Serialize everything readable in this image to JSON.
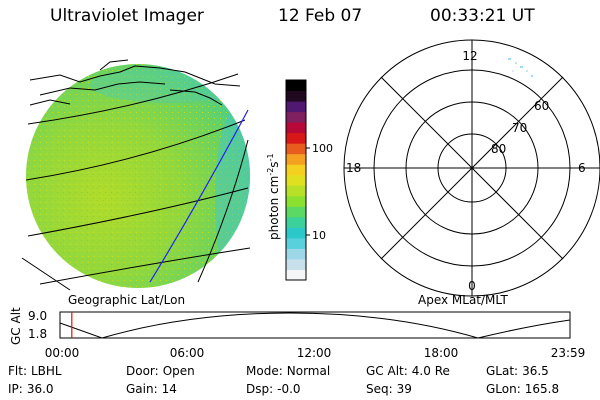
{
  "header": {
    "title": "Ultraviolet Imager",
    "date": "12 Feb 07",
    "time": "00:33:21 UT"
  },
  "colorbar": {
    "unit": "photon cm",
    "unit_exp": "-2",
    "unit_mid": "s",
    "unit_exp2": "-1",
    "tick_high": "100",
    "tick_low": "10",
    "colors": [
      "#f4f6f8",
      "#c8e0ec",
      "#9ed8e8",
      "#5ad0dc",
      "#2ac8c8",
      "#3cd09a",
      "#5cd864",
      "#8ce030",
      "#b8e028",
      "#e0e020",
      "#f4d020",
      "#f4a020",
      "#e85c20",
      "#d81818",
      "#b80838",
      "#802060",
      "#501870",
      "#200820",
      "#000000"
    ]
  },
  "panels": {
    "left_label": "Geographic Lat/Lon",
    "right_label": "Apex MLat/MLT"
  },
  "polar": {
    "mlt_top": "12",
    "mlt_left": "18",
    "mlt_right": "6",
    "mlt_bottom": "0",
    "lat_60": "60",
    "lat_70": "70",
    "lat_80": "80"
  },
  "alt_plot": {
    "axis_label": "GC Alt",
    "y_max": "9.0",
    "y_min": "1.8",
    "x_ticks": [
      "00:00",
      "06:00",
      "12:00",
      "18:00",
      "23:59"
    ],
    "current_marker_hour": 0.556
  },
  "info": {
    "filter_label": "Flt:",
    "filter_value": "LBHL",
    "ip_label": "IP:",
    "ip_value": "36.0",
    "door_label": "Door:",
    "door_value": "Open",
    "gain_label": "Gain:",
    "gain_value": "14",
    "mode_label": "Mode:",
    "mode_value": "Normal",
    "dsp_label": "Dsp:",
    "dsp_value": "-0.0",
    "gcalt_label": "GC Alt:",
    "gcalt_value": "4.0 Re",
    "seq_label": "Seq:",
    "seq_value": "39",
    "glat_label": "GLat:",
    "glat_value": "36.5",
    "glon_label": "GLon:",
    "glon_value": "165.8"
  }
}
